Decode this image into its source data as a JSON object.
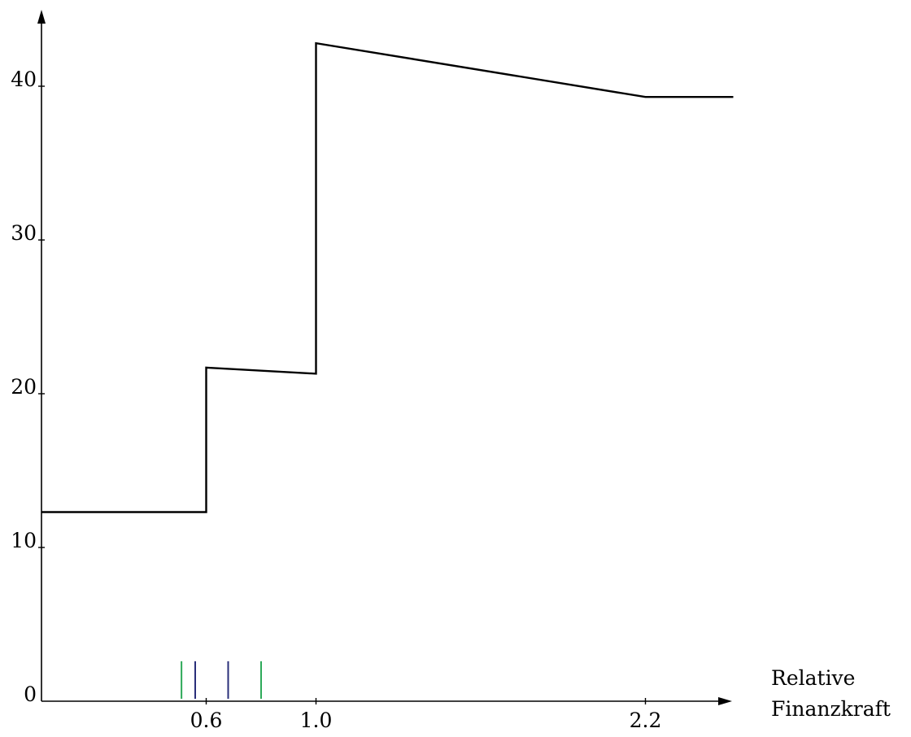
{
  "chart_data": {
    "type": "line",
    "title": "",
    "xlabel": [
      "Relative",
      "Finanzkraft"
    ],
    "ylabel": "",
    "xlim": [
      0,
      2.55
    ],
    "ylim": [
      0,
      45
    ],
    "x_ticks": [
      {
        "value": 0.6,
        "label": "0.6"
      },
      {
        "value": 1.0,
        "label": "1.0"
      },
      {
        "value": 2.2,
        "label": "2.2"
      }
    ],
    "y_ticks": [
      {
        "value": 0,
        "label": "0"
      },
      {
        "value": 10,
        "label": "10"
      },
      {
        "value": 20,
        "label": "20"
      },
      {
        "value": 30,
        "label": "30"
      },
      {
        "value": 40,
        "label": "40"
      }
    ],
    "series": [
      {
        "color": "#000000",
        "points": [
          [
            0.0,
            12.3
          ],
          [
            0.6,
            12.3
          ],
          [
            0.6,
            21.7
          ],
          [
            1.0,
            21.3
          ],
          [
            1.0,
            42.8
          ],
          [
            2.2,
            39.3
          ],
          [
            2.52,
            39.3
          ]
        ]
      }
    ],
    "markers": [
      {
        "x": 0.51,
        "color": "#2eaa5a",
        "height": 2.6
      },
      {
        "x": 0.56,
        "color": "#2a2f7a",
        "height": 2.6
      },
      {
        "x": 0.68,
        "color": "#2a2f7a",
        "height": 2.6
      },
      {
        "x": 0.8,
        "color": "#2eaa5a",
        "height": 2.6
      }
    ],
    "grid": false,
    "axis_color": "#000000"
  }
}
